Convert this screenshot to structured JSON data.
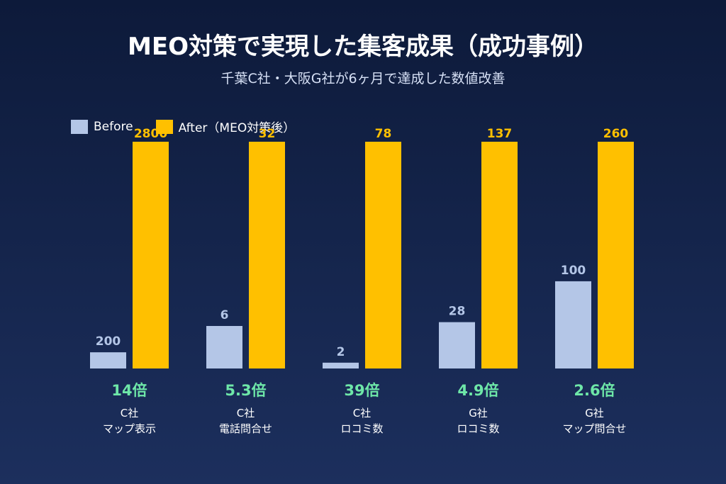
{
  "title": "MEO対策で実現した集客成果（成功事例）",
  "subtitle": "千葉C社・大阪G社が6ヶ月で達成した数値改善",
  "colors": {
    "before": "#b4c6e7",
    "after": "#ffc000",
    "ratio": "#6ee7a8"
  },
  "chart_data": {
    "type": "bar",
    "title": "MEO対策で実現した集客成果（成功事例）",
    "subtitle": "千葉C社・大阪G社が6ヶ月で達成した数値改善",
    "legend_position": "top-left",
    "grid": false,
    "series": [
      {
        "name": "Before",
        "values": [
          200,
          6,
          2,
          28,
          100
        ]
      },
      {
        "name": "After（MEO対策後）",
        "values": [
          2800,
          32,
          78,
          137,
          260
        ]
      }
    ],
    "categories": [
      {
        "line1": "C社",
        "line2": "マップ表示",
        "ratio": "14倍"
      },
      {
        "line1": "C社",
        "line2": "電話問合せ",
        "ratio": "5.3倍"
      },
      {
        "line1": "C社",
        "line2": "ロコミ数",
        "ratio": "39倍"
      },
      {
        "line1": "G社",
        "line2": "ロコミ数",
        "ratio": "4.9倍"
      },
      {
        "line1": "G社",
        "line2": "マップ問合せ",
        "ratio": "2.6倍"
      }
    ],
    "scale": "each category normalized to its After value"
  }
}
